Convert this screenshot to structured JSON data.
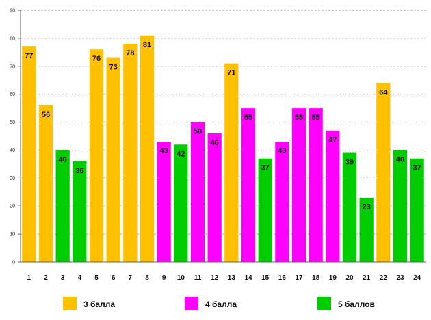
{
  "chart_data": {
    "type": "bar",
    "title": "",
    "xlabel": "",
    "ylabel": "",
    "ylim": [
      0,
      90
    ],
    "yticks": [
      0,
      10,
      20,
      30,
      40,
      50,
      60,
      70,
      80,
      90
    ],
    "grid": true,
    "legend_position": "bottom",
    "categories": [
      "1",
      "2",
      "3",
      "4",
      "5",
      "6",
      "7",
      "8",
      "9",
      "10",
      "11",
      "12",
      "13",
      "14",
      "15",
      "16",
      "17",
      "18",
      "19",
      "20",
      "21",
      "22",
      "23",
      "24"
    ],
    "values": [
      77,
      56,
      40,
      36,
      76,
      73,
      78,
      81,
      43,
      42,
      50,
      46,
      71,
      55,
      37,
      43,
      55,
      55,
      47,
      39,
      23,
      64,
      40,
      37
    ],
    "groups": [
      "g3",
      "g3",
      "g5",
      "g5",
      "g3",
      "g3",
      "g3",
      "g3",
      "g4",
      "g5",
      "g4",
      "g4",
      "g3",
      "g4",
      "g5",
      "g4",
      "g4",
      "g4",
      "g4",
      "g5",
      "g5",
      "g3",
      "g5",
      "g5"
    ],
    "legend": [
      {
        "key": "g3",
        "label": "3 балла",
        "color": "#FFC000"
      },
      {
        "key": "g4",
        "label": "4 балла",
        "color": "#FF00FF"
      },
      {
        "key": "g5",
        "label": "5 баллов",
        "color": "#00CC00"
      }
    ]
  }
}
